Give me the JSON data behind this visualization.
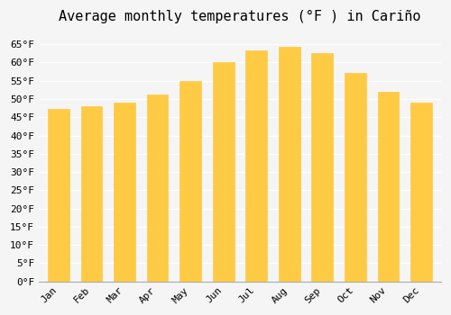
{
  "months": [
    "Jan",
    "Feb",
    "Mar",
    "Apr",
    "May",
    "Jun",
    "Jul",
    "Aug",
    "Sep",
    "Oct",
    "Nov",
    "Dec"
  ],
  "values": [
    47.3,
    48.0,
    49.1,
    51.3,
    55.0,
    60.0,
    63.3,
    64.2,
    62.6,
    57.2,
    52.0,
    48.9
  ],
  "bar_color_top": "#FDB913",
  "bar_color_bottom": "#FFCA44",
  "title": "Average monthly temperatures (°F ) in Cariño",
  "ylim_min": 0,
  "ylim_max": 68,
  "yticks": [
    0,
    5,
    10,
    15,
    20,
    25,
    30,
    35,
    40,
    45,
    50,
    55,
    60,
    65
  ],
  "background_color": "#f5f5f5",
  "grid_color": "#ffffff",
  "title_fontsize": 11,
  "tick_fontsize": 8,
  "bar_edge_color": "#E8A000"
}
